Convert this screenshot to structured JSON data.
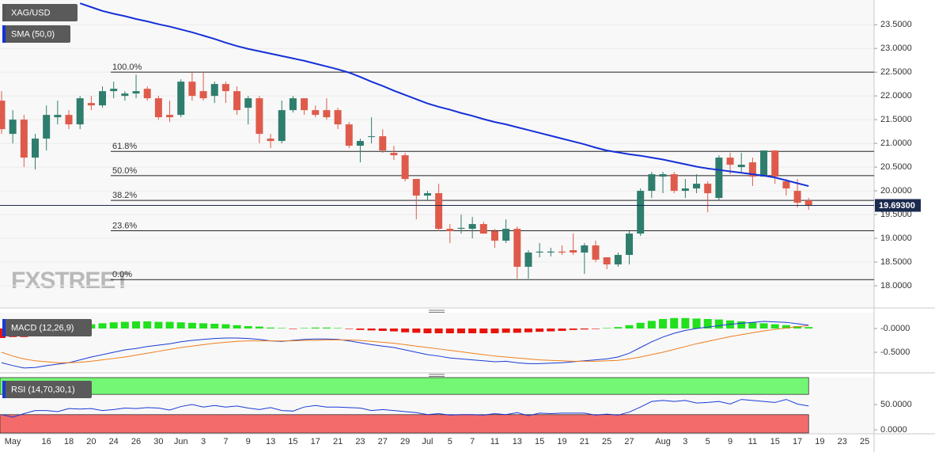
{
  "chart_data": [
    {
      "type": "candlestick",
      "watermark": "FXSTREET",
      "categories": [
        null,
        "May",
        null,
        null,
        "16",
        null,
        "18",
        null,
        "20",
        null,
        "24",
        null,
        "26",
        null,
        "30",
        null,
        "Jun",
        null,
        "3",
        null,
        "7",
        null,
        "9",
        null,
        "13",
        null,
        "15",
        null,
        "17",
        null,
        "21",
        null,
        "23",
        null,
        "27",
        null,
        "29",
        null,
        "Jul",
        null,
        "5",
        null,
        "7",
        null,
        "11",
        null,
        "13",
        null,
        "15",
        null,
        "19",
        null,
        "21",
        null,
        "25",
        null,
        "27",
        null,
        null,
        "Aug",
        null,
        "3",
        null,
        "5",
        null,
        "9",
        null,
        "11",
        null,
        "15",
        null,
        "17",
        null,
        "19",
        null,
        "23",
        null,
        "25"
      ],
      "series": [
        {
          "name": "XAG/USD",
          "color": "#555555",
          "up_color": "#2f7d6d",
          "down_color": "#de5b4b",
          "open": [
            21.9,
            21.2,
            21.5,
            20.7,
            21.1,
            21.55,
            21.6,
            21.4,
            21.85,
            21.8,
            22.1,
            22.0,
            22.05,
            22.15,
            21.95,
            21.6,
            21.6,
            22.3,
            22.1,
            22.0,
            22.25,
            22.1,
            21.75,
            21.95,
            21.1,
            21.05,
            21.7,
            21.95,
            21.7,
            21.7,
            21.7,
            21.4,
            20.95,
            21.15,
            21.15,
            20.8,
            20.75,
            20.25,
            19.9,
            19.95,
            19.2,
            19.2,
            19.2,
            19.3,
            19.15,
            18.95,
            19.2,
            18.4,
            18.7,
            18.7,
            18.72,
            18.75,
            18.7,
            18.85,
            18.6,
            18.45,
            18.65,
            19.1,
            20.0,
            20.3,
            20.35,
            20.0,
            20.05,
            20.15,
            19.85,
            20.7,
            20.5,
            20.6,
            20.3,
            20.85,
            20.2,
            20.0,
            19.8,
            null,
            null,
            null,
            null,
            null
          ],
          "high": [
            22.1,
            21.7,
            21.6,
            21.2,
            21.8,
            21.9,
            21.7,
            22.0,
            22.0,
            22.2,
            22.3,
            22.1,
            22.45,
            22.2,
            22.0,
            21.9,
            22.35,
            22.5,
            22.5,
            22.3,
            22.3,
            22.2,
            22.0,
            22.0,
            21.2,
            21.9,
            22.0,
            21.95,
            21.8,
            21.95,
            21.75,
            21.45,
            21.1,
            21.55,
            21.3,
            20.95,
            20.8,
            20.25,
            20.0,
            20.15,
            19.3,
            19.5,
            19.45,
            19.35,
            19.2,
            19.4,
            19.25,
            18.75,
            18.9,
            18.8,
            18.85,
            19.1,
            18.9,
            18.95,
            18.6,
            18.7,
            19.15,
            20.05,
            20.4,
            20.4,
            20.4,
            20.25,
            20.35,
            20.2,
            20.75,
            20.8,
            20.8,
            20.7,
            20.85,
            20.85,
            20.25,
            20.25,
            19.85,
            null,
            null,
            null,
            null,
            null
          ],
          "low": [
            21.2,
            21.0,
            20.5,
            20.45,
            20.85,
            21.4,
            21.3,
            21.3,
            21.7,
            21.75,
            21.95,
            21.9,
            21.95,
            21.9,
            21.5,
            21.45,
            21.55,
            21.9,
            21.9,
            21.85,
            21.85,
            21.6,
            21.4,
            21.0,
            20.9,
            21.0,
            21.65,
            21.6,
            21.55,
            21.5,
            21.3,
            20.9,
            20.6,
            21.0,
            20.8,
            20.65,
            20.2,
            19.4,
            19.8,
            19.15,
            18.9,
            19.1,
            19.0,
            19.1,
            18.8,
            18.9,
            18.15,
            18.15,
            18.6,
            18.62,
            18.65,
            18.65,
            18.25,
            18.5,
            18.35,
            18.4,
            18.45,
            19.05,
            19.85,
            19.95,
            19.95,
            19.85,
            19.95,
            19.55,
            19.8,
            20.35,
            20.4,
            20.1,
            20.3,
            20.15,
            19.9,
            19.65,
            19.6,
            null,
            null,
            null,
            null,
            null
          ],
          "close": [
            21.3,
            21.5,
            20.7,
            21.1,
            21.6,
            21.6,
            21.4,
            21.95,
            21.8,
            22.1,
            22.15,
            22.05,
            22.1,
            21.95,
            21.55,
            21.55,
            22.3,
            22.0,
            21.95,
            22.25,
            22.1,
            21.7,
            21.95,
            21.2,
            21.05,
            21.7,
            21.95,
            21.7,
            21.6,
            21.55,
            21.4,
            20.95,
            21.05,
            21.15,
            20.85,
            20.75,
            20.25,
            19.9,
            19.95,
            19.2,
            19.15,
            19.22,
            19.3,
            19.1,
            18.95,
            19.2,
            18.4,
            18.7,
            18.72,
            18.72,
            18.7,
            18.7,
            18.85,
            18.55,
            18.45,
            18.65,
            19.1,
            20.0,
            20.35,
            20.35,
            20.0,
            20.05,
            20.15,
            19.95,
            20.7,
            20.55,
            20.55,
            20.3,
            20.85,
            20.3,
            20.05,
            19.75,
            19.693,
            null,
            null,
            null,
            null,
            null
          ]
        },
        {
          "name": "SMA (50,0)",
          "color": "#1530d8",
          "values": [
            null,
            null,
            null,
            null,
            null,
            null,
            null,
            23.95,
            23.87,
            23.79,
            23.73,
            23.68,
            23.62,
            23.57,
            23.51,
            23.46,
            23.4,
            23.34,
            23.27,
            23.2,
            23.12,
            23.05,
            22.99,
            22.94,
            22.89,
            22.84,
            22.79,
            22.74,
            22.68,
            22.62,
            22.56,
            22.49,
            22.4,
            22.3,
            22.21,
            22.11,
            22.02,
            21.93,
            21.84,
            21.77,
            21.71,
            21.64,
            21.58,
            21.51,
            21.45,
            21.4,
            21.34,
            21.28,
            21.22,
            21.16,
            21.1,
            21.04,
            20.98,
            20.91,
            20.85,
            20.81,
            20.77,
            20.74,
            20.7,
            20.66,
            20.61,
            20.56,
            20.51,
            20.47,
            20.44,
            20.41,
            20.38,
            20.35,
            20.32,
            20.28,
            20.22,
            20.16,
            20.1,
            null,
            null,
            null,
            null,
            null
          ]
        }
      ],
      "levels": [
        {
          "name": "100.0%",
          "value": 22.5
        },
        {
          "name": "61.8%",
          "value": 20.83
        },
        {
          "name": "50.0%",
          "value": 20.32
        },
        {
          "name": "38.2%",
          "value": 19.8
        },
        {
          "name": "23.6%",
          "value": 19.16
        },
        {
          "name": "0.0%",
          "value": 18.13
        }
      ],
      "last_price": {
        "value": 19.693,
        "label": "19.69300",
        "color": "#1b2a4e"
      },
      "ylim": [
        17.55,
        24.02
      ],
      "yticks": [
        {
          "value": 18.0,
          "label": "18.0000"
        },
        {
          "value": 18.5,
          "label": "18.5000"
        },
        {
          "value": 19.0,
          "label": "19.0000"
        },
        {
          "value": 19.5,
          "label": "19.5000"
        },
        {
          "value": 20.0,
          "label": "20.0000"
        },
        {
          "value": 20.5,
          "label": "20.5000"
        },
        {
          "value": 21.0,
          "label": "21.0000"
        },
        {
          "value": 21.5,
          "label": "21.5000"
        },
        {
          "value": 22.0,
          "label": "22.0000"
        },
        {
          "value": 22.5,
          "label": "22.5000"
        },
        {
          "value": 23.0,
          "label": "23.0000"
        },
        {
          "value": 23.5,
          "label": "23.5000"
        }
      ],
      "grid": true
    },
    {
      "type": "macd",
      "title": "MACD (12,26,9)",
      "histogram": {
        "positive_color": "#22e01e",
        "negative_color": "#e8140c",
        "values": [
          -0.2,
          -0.18,
          -0.18,
          -0.15,
          -0.1,
          -0.05,
          0.02,
          0.05,
          0.09,
          0.11,
          0.13,
          0.14,
          0.15,
          0.15,
          0.14,
          0.14,
          0.13,
          0.12,
          0.11,
          0.1,
          0.09,
          0.07,
          0.05,
          0.04,
          0.02,
          0.01,
          -0.01,
          0.01,
          0.02,
          0.02,
          0.01,
          -0.01,
          -0.03,
          -0.04,
          -0.05,
          -0.06,
          -0.08,
          -0.09,
          -0.1,
          -0.1,
          -0.1,
          -0.1,
          -0.1,
          -0.1,
          -0.1,
          -0.09,
          -0.09,
          -0.08,
          -0.07,
          -0.06,
          -0.05,
          -0.03,
          -0.02,
          -0.01,
          0.01,
          0.03,
          0.07,
          0.12,
          0.16,
          0.2,
          0.22,
          0.22,
          0.21,
          0.2,
          0.19,
          0.17,
          0.15,
          0.13,
          0.11,
          0.09,
          0.07,
          0.05,
          0.03,
          null,
          null,
          null,
          null,
          null
        ]
      },
      "series": [
        {
          "color": "#1a3ad6",
          "values": [
            -0.72,
            -0.78,
            -0.83,
            -0.82,
            -0.78,
            -0.75,
            -0.72,
            -0.66,
            -0.6,
            -0.55,
            -0.5,
            -0.45,
            -0.42,
            -0.38,
            -0.35,
            -0.32,
            -0.28,
            -0.25,
            -0.23,
            -0.21,
            -0.2,
            -0.2,
            -0.21,
            -0.23,
            -0.26,
            -0.27,
            -0.25,
            -0.23,
            -0.22,
            -0.22,
            -0.23,
            -0.26,
            -0.3,
            -0.34,
            -0.37,
            -0.4,
            -0.45,
            -0.5,
            -0.55,
            -0.58,
            -0.62,
            -0.64,
            -0.66,
            -0.68,
            -0.7,
            -0.69,
            -0.72,
            -0.74,
            -0.74,
            -0.73,
            -0.72,
            -0.7,
            -0.68,
            -0.66,
            -0.64,
            -0.6,
            -0.52,
            -0.4,
            -0.28,
            -0.18,
            -0.1,
            -0.04,
            0.0,
            0.03,
            0.06,
            0.09,
            0.11,
            0.13,
            0.15,
            0.14,
            0.13,
            0.1,
            0.07,
            null,
            null,
            null,
            null,
            null
          ]
        },
        {
          "color": "#f07f1c",
          "values": [
            -0.5,
            -0.58,
            -0.64,
            -0.68,
            -0.7,
            -0.72,
            -0.72,
            -0.71,
            -0.69,
            -0.66,
            -0.63,
            -0.6,
            -0.56,
            -0.52,
            -0.48,
            -0.44,
            -0.4,
            -0.37,
            -0.34,
            -0.31,
            -0.29,
            -0.27,
            -0.26,
            -0.26,
            -0.26,
            -0.26,
            -0.26,
            -0.25,
            -0.25,
            -0.24,
            -0.24,
            -0.24,
            -0.25,
            -0.27,
            -0.29,
            -0.31,
            -0.34,
            -0.37,
            -0.4,
            -0.43,
            -0.46,
            -0.49,
            -0.52,
            -0.55,
            -0.58,
            -0.6,
            -0.62,
            -0.64,
            -0.66,
            -0.67,
            -0.68,
            -0.69,
            -0.69,
            -0.69,
            -0.68,
            -0.67,
            -0.64,
            -0.6,
            -0.55,
            -0.5,
            -0.44,
            -0.38,
            -0.32,
            -0.27,
            -0.22,
            -0.17,
            -0.13,
            -0.09,
            -0.05,
            -0.02,
            0.01,
            0.04,
            0.06,
            null,
            null,
            null,
            null,
            null
          ]
        }
      ],
      "ylim": [
        -0.883,
        0.333
      ],
      "yticks": [
        {
          "value": 0,
          "label": "-0.0000"
        },
        {
          "value": -0.5,
          "label": "-0.5000"
        }
      ]
    },
    {
      "type": "rsi",
      "title": "RSI (14,70,30,1)",
      "overbought": 70,
      "oversold": 30,
      "overbought_color": "#74f774",
      "oversold_color": "#f36b6b",
      "series": [
        {
          "color": "#1a3ad6",
          "values": [
            30,
            25,
            32,
            38,
            38,
            36,
            42,
            41,
            42,
            38,
            40,
            43,
            42,
            44,
            43,
            39,
            46,
            50,
            45,
            48,
            45,
            47,
            43,
            40,
            44,
            38,
            37,
            45,
            48,
            45,
            45,
            44,
            43,
            38,
            40,
            38,
            36,
            34,
            30,
            32,
            29,
            30,
            30,
            29,
            32,
            30,
            34,
            28,
            33,
            32,
            33,
            33,
            33,
            29,
            31,
            29,
            35,
            45,
            56,
            58,
            56,
            58,
            53,
            54,
            56,
            51,
            60,
            58,
            56,
            54,
            60,
            51,
            47,
            null,
            null,
            null,
            null,
            null
          ]
        }
      ],
      "ylim": [
        -6.25,
        103.1
      ],
      "yticks": [
        {
          "value": 50,
          "label": "50.0000"
        },
        {
          "value": 0,
          "label": "0.0000"
        }
      ]
    }
  ]
}
